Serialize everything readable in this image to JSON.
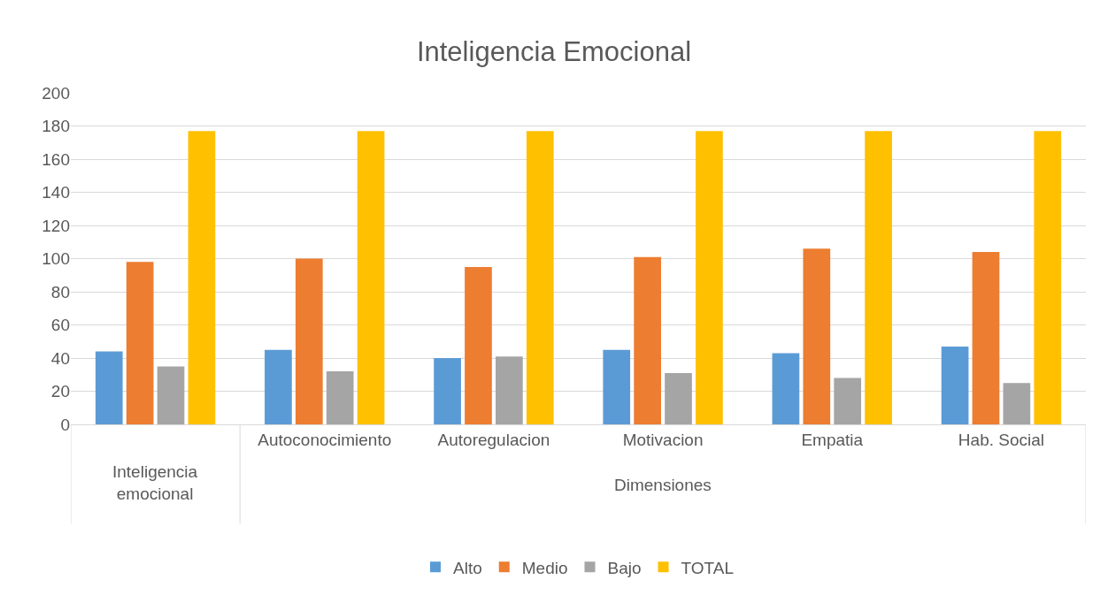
{
  "chart_data": {
    "type": "bar",
    "title": "Inteligencia Emocional",
    "categories": [
      null,
      "Autoconocimiento",
      "Autoregulacion",
      "Motivacion",
      "Empatia",
      "Hab. Social"
    ],
    "annotations": [
      "Inteligencia emocional",
      "Dimensiones"
    ],
    "series": [
      {
        "name": "Alto",
        "color": "#5b9bd5",
        "values": [
          44,
          45,
          40,
          45,
          43,
          47
        ]
      },
      {
        "name": "Medio",
        "color": "#ed7d31",
        "values": [
          98,
          100,
          95,
          101,
          106,
          104
        ]
      },
      {
        "name": "Bajo",
        "color": "#a5a5a5",
        "values": [
          35,
          32,
          41,
          31,
          28,
          25
        ]
      },
      {
        "name": "TOTAL",
        "color": "#ffc000",
        "values": [
          177,
          177,
          177,
          177,
          177,
          177
        ]
      }
    ],
    "ylim": [
      0,
      200
    ],
    "yticks": [
      0,
      20,
      40,
      60,
      80,
      100,
      120,
      140,
      160,
      180,
      200
    ],
    "grid": "y",
    "legend": "bottom"
  }
}
